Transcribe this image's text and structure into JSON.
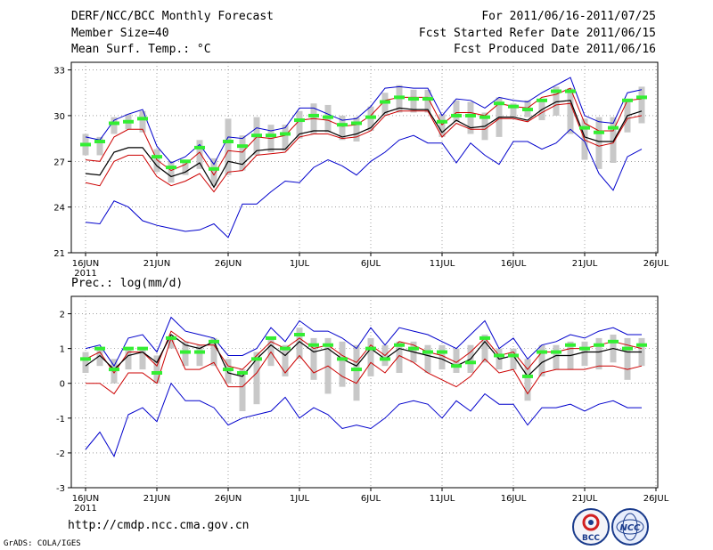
{
  "header": {
    "left1": "DERF/NCC/BCC Monthly Forecast",
    "left2": "Member Size=40",
    "left3": "Mean Surf. Temp.: °C",
    "right1": "For 2011/06/16-2011/07/25",
    "right2": "Fcst Started Refer Date 2011/06/15",
    "right3": "Fcst Produced Date 2011/06/16"
  },
  "footer": {
    "url": "http://cmdp.ncc.cma.gov.cn",
    "credit": "GrADS: COLA/IGES",
    "logo_left": "BCC",
    "logo_right": "NCC"
  },
  "colors": {
    "max_min": "#0000cc",
    "p10_p90": "#cc0000",
    "median": "#000000",
    "mean_marker": "#33ee33",
    "range_bar": "#c8c8c8",
    "grid": "#666666"
  },
  "chart_data": [
    {
      "type": "line",
      "title": "Mean Surf. Temp.: °C",
      "x": [
        "16JUN",
        "17JUN",
        "18JUN",
        "19JUN",
        "20JUN",
        "21JUN",
        "22JUN",
        "23JUN",
        "24JUN",
        "25JUN",
        "26JUN",
        "27JUN",
        "28JUN",
        "29JUN",
        "30JUN",
        "1JUL",
        "2JUL",
        "3JUL",
        "4JUL",
        "5JUL",
        "6JUL",
        "7JUL",
        "8JUL",
        "9JUL",
        "10JUL",
        "11JUL",
        "12JUL",
        "13JUL",
        "14JUL",
        "15JUL",
        "16JUL",
        "17JUL",
        "18JUL",
        "19JUL",
        "20JUL",
        "21JUL",
        "22JUL",
        "23JUL",
        "24JUL",
        "25JUL"
      ],
      "xtick_labels": [
        "16JUN",
        "21JUN",
        "26JUN",
        "1JUL",
        "6JUL",
        "11JUL",
        "16JUL",
        "21JUL",
        "26JUL"
      ],
      "xtick_year": "2011",
      "ylim": [
        21,
        33.5
      ],
      "yticks": [
        21,
        24,
        27,
        30,
        33
      ],
      "series": [
        {
          "name": "max",
          "values": [
            28.6,
            28.4,
            29.7,
            30.1,
            30.4,
            28.0,
            26.9,
            27.3,
            28.1,
            26.8,
            28.6,
            28.5,
            29.2,
            29.0,
            29.2,
            30.5,
            30.5,
            30.1,
            29.7,
            29.8,
            30.6,
            31.8,
            31.9,
            31.8,
            31.8,
            30.0,
            31.1,
            31.0,
            30.5,
            31.2,
            31.0,
            30.9,
            31.5,
            32.0,
            32.5,
            30.0,
            29.6,
            29.5,
            31.5,
            31.7
          ]
        },
        {
          "name": "p90",
          "values": [
            27.1,
            27.0,
            28.6,
            29.1,
            29.1,
            27.1,
            26.4,
            26.8,
            27.6,
            26.1,
            27.7,
            27.6,
            28.6,
            28.5,
            28.7,
            29.7,
            29.8,
            29.7,
            29.3,
            29.4,
            30.0,
            31.0,
            31.2,
            31.2,
            31.2,
            29.4,
            30.2,
            30.2,
            30.0,
            30.8,
            30.6,
            30.5,
            31.2,
            31.4,
            31.8,
            29.5,
            29.0,
            29.0,
            31.0,
            31.1
          ]
        },
        {
          "name": "median",
          "values": [
            26.2,
            26.1,
            27.6,
            27.9,
            27.9,
            26.7,
            26.0,
            26.3,
            26.9,
            25.3,
            27.0,
            26.8,
            27.7,
            27.8,
            27.8,
            28.8,
            29.0,
            29.0,
            28.6,
            28.8,
            29.2,
            30.2,
            30.5,
            30.4,
            30.4,
            28.9,
            29.7,
            29.2,
            29.3,
            29.9,
            29.9,
            29.7,
            30.4,
            30.9,
            31.0,
            28.6,
            28.3,
            28.3,
            30.0,
            30.3
          ]
        },
        {
          "name": "p10",
          "values": [
            25.6,
            25.4,
            27.0,
            27.4,
            27.4,
            26.0,
            25.4,
            25.7,
            26.2,
            25.0,
            26.3,
            26.4,
            27.4,
            27.5,
            27.6,
            28.6,
            28.8,
            28.8,
            28.5,
            28.6,
            29.0,
            30.0,
            30.3,
            30.3,
            30.3,
            28.6,
            29.5,
            29.1,
            29.1,
            29.8,
            29.8,
            29.6,
            30.2,
            30.7,
            30.8,
            28.4,
            28.0,
            28.2,
            29.8,
            30.0
          ]
        },
        {
          "name": "min",
          "values": [
            23.0,
            22.9,
            24.4,
            24.0,
            23.1,
            22.8,
            22.6,
            22.4,
            22.5,
            22.9,
            22.0,
            24.2,
            24.2,
            25.0,
            25.7,
            25.6,
            26.6,
            27.1,
            26.7,
            26.1,
            27.0,
            27.6,
            28.4,
            28.7,
            28.2,
            28.2,
            26.9,
            28.2,
            27.4,
            26.8,
            28.3,
            28.3,
            27.8,
            28.2,
            29.1,
            28.3,
            26.2,
            25.1,
            27.3,
            27.8
          ]
        },
        {
          "name": "mean",
          "values": [
            28.1,
            28.3,
            29.5,
            29.6,
            29.8,
            27.3,
            26.6,
            27.0,
            27.9,
            26.5,
            28.3,
            28.0,
            28.7,
            28.7,
            28.8,
            29.7,
            30.0,
            29.9,
            29.4,
            29.5,
            29.9,
            30.9,
            31.2,
            31.1,
            31.1,
            29.6,
            30.0,
            30.0,
            29.9,
            30.8,
            30.6,
            30.4,
            31.0,
            31.6,
            31.6,
            29.2,
            28.9,
            29.2,
            31.0,
            31.2
          ]
        },
        {
          "name": "box_low",
          "values": [
            27.4,
            27.4,
            28.8,
            29.1,
            28.9,
            26.3,
            25.6,
            26.1,
            26.5,
            25.4,
            26.1,
            26.4,
            27.4,
            27.6,
            27.7,
            28.5,
            28.8,
            28.9,
            28.4,
            28.3,
            29.0,
            30.0,
            30.2,
            30.2,
            30.2,
            28.6,
            29.6,
            28.8,
            28.4,
            28.6,
            29.9,
            29.9,
            29.7,
            30.0,
            28.8,
            27.1,
            26.5,
            26.9,
            28.9,
            29.5
          ]
        },
        {
          "name": "box_high",
          "values": [
            28.8,
            28.6,
            29.9,
            30.1,
            30.3,
            27.8,
            27.0,
            27.1,
            28.4,
            27.2,
            29.8,
            28.7,
            29.9,
            29.4,
            29.4,
            30.3,
            30.8,
            30.7,
            30.0,
            29.9,
            30.6,
            31.5,
            32.0,
            31.7,
            31.7,
            30.1,
            31.0,
            30.9,
            30.2,
            31.2,
            30.8,
            31.0,
            31.0,
            31.9,
            31.8,
            29.8,
            29.9,
            29.9,
            31.0,
            31.9
          ]
        }
      ]
    },
    {
      "type": "line",
      "title": "Prec.: log(mm/d)",
      "x": [
        "16JUN",
        "17JUN",
        "18JUN",
        "19JUN",
        "20JUN",
        "21JUN",
        "22JUN",
        "23JUN",
        "24JUN",
        "25JUN",
        "26JUN",
        "27JUN",
        "28JUN",
        "29JUN",
        "30JUN",
        "1JUL",
        "2JUL",
        "3JUL",
        "4JUL",
        "5JUL",
        "6JUL",
        "7JUL",
        "8JUL",
        "9JUL",
        "10JUL",
        "11JUL",
        "12JUL",
        "13JUL",
        "14JUL",
        "15JUL",
        "16JUL",
        "17JUL",
        "18JUL",
        "19JUL",
        "20JUL",
        "21JUL",
        "22JUL",
        "23JUL",
        "24JUL",
        "25JUL"
      ],
      "xtick_labels": [
        "16JUN",
        "21JUN",
        "26JUN",
        "1JUL",
        "6JUL",
        "11JUL",
        "16JUL",
        "21JUL",
        "26JUL"
      ],
      "xtick_year": "2011",
      "ylim": [
        -3,
        2.5
      ],
      "yticks": [
        -3,
        -2,
        -1,
        0,
        1,
        2
      ],
      "series": [
        {
          "name": "max",
          "values": [
            1.0,
            1.1,
            0.5,
            1.3,
            1.4,
            0.9,
            1.9,
            1.5,
            1.4,
            1.3,
            0.8,
            0.8,
            1.0,
            1.6,
            1.2,
            1.8,
            1.5,
            1.5,
            1.3,
            1.0,
            1.6,
            1.1,
            1.6,
            1.5,
            1.4,
            1.2,
            1.0,
            1.4,
            1.8,
            1.0,
            1.3,
            0.7,
            1.1,
            1.2,
            1.4,
            1.3,
            1.5,
            1.6,
            1.4,
            1.4
          ]
        },
        {
          "name": "p90",
          "values": [
            0.7,
            0.9,
            0.3,
            0.9,
            0.9,
            0.5,
            1.5,
            1.2,
            1.1,
            1.1,
            0.5,
            0.4,
            0.8,
            1.2,
            1.0,
            1.3,
            1.0,
            1.1,
            0.8,
            0.6,
            1.1,
            0.8,
            1.2,
            1.1,
            0.9,
            0.8,
            0.6,
            0.9,
            1.3,
            0.8,
            0.9,
            0.4,
            0.9,
            0.9,
            1.0,
            1.0,
            1.1,
            1.2,
            1.1,
            1.0
          ]
        },
        {
          "name": "median",
          "values": [
            0.5,
            0.8,
            0.4,
            0.8,
            0.9,
            0.6,
            1.4,
            1.1,
            1.0,
            1.2,
            0.3,
            0.2,
            0.7,
            1.1,
            0.8,
            1.2,
            0.9,
            1.0,
            0.7,
            0.5,
            1.0,
            0.7,
            1.0,
            0.9,
            0.8,
            0.7,
            0.5,
            0.7,
            1.2,
            0.7,
            0.8,
            0.2,
            0.6,
            0.8,
            0.8,
            0.9,
            0.9,
            1.0,
            0.9,
            0.9
          ]
        },
        {
          "name": "p10",
          "values": [
            0.0,
            0.0,
            -0.3,
            0.3,
            0.3,
            0.0,
            1.3,
            0.4,
            0.4,
            0.6,
            -0.1,
            -0.1,
            0.3,
            0.9,
            0.3,
            0.8,
            0.3,
            0.5,
            0.2,
            0.0,
            0.6,
            0.3,
            0.8,
            0.6,
            0.3,
            0.1,
            -0.1,
            0.2,
            0.7,
            0.3,
            0.4,
            -0.3,
            0.3,
            0.4,
            0.4,
            0.4,
            0.5,
            0.5,
            0.4,
            0.5
          ]
        },
        {
          "name": "min",
          "values": [
            -1.9,
            -1.4,
            -2.1,
            -0.9,
            -0.7,
            -1.1,
            0.0,
            -0.5,
            -0.5,
            -0.7,
            -1.2,
            -1.0,
            -0.9,
            -0.8,
            -0.4,
            -1.0,
            -0.7,
            -0.9,
            -1.3,
            -1.2,
            -1.3,
            -1.0,
            -0.6,
            -0.5,
            -0.6,
            -1.0,
            -0.5,
            -0.8,
            -0.3,
            -0.6,
            -0.6,
            -1.2,
            -0.7,
            -0.7,
            -0.6,
            -0.8,
            -0.6,
            -0.5,
            -0.7,
            -0.7
          ]
        },
        {
          "name": "mean",
          "values": [
            0.7,
            1.0,
            0.4,
            1.0,
            1.0,
            0.3,
            1.3,
            0.9,
            0.9,
            1.2,
            0.4,
            0.3,
            0.7,
            1.3,
            1.0,
            1.4,
            1.1,
            1.1,
            0.7,
            0.4,
            1.0,
            0.7,
            1.1,
            1.0,
            0.9,
            0.9,
            0.5,
            0.6,
            1.3,
            0.8,
            0.8,
            0.2,
            0.9,
            0.9,
            1.1,
            1.0,
            1.1,
            1.2,
            1.0,
            1.1
          ]
        },
        {
          "name": "box_low",
          "values": [
            0.3,
            0.5,
            0.0,
            0.4,
            0.4,
            0.0,
            1.0,
            0.5,
            0.5,
            0.5,
            0.0,
            -0.8,
            -0.6,
            0.5,
            0.2,
            0.7,
            0.1,
            -0.3,
            -0.1,
            -0.5,
            0.2,
            0.5,
            0.3,
            0.6,
            0.3,
            0.4,
            0.3,
            0.3,
            0.6,
            0.4,
            0.4,
            -0.5,
            0.2,
            0.4,
            0.4,
            0.5,
            0.4,
            0.6,
            0.1,
            0.5
          ]
        },
        {
          "name": "box_high",
          "values": [
            0.9,
            1.0,
            0.7,
            1.0,
            1.0,
            0.8,
            1.3,
            1.2,
            1.1,
            1.3,
            0.7,
            0.4,
            0.9,
            1.3,
            1.1,
            1.6,
            1.3,
            1.3,
            1.2,
            1.1,
            1.3,
            1.1,
            1.2,
            1.2,
            1.1,
            1.1,
            1.0,
            1.1,
            1.4,
            1.0,
            1.0,
            0.7,
            1.1,
            1.1,
            1.2,
            1.2,
            1.3,
            1.4,
            1.3,
            1.3
          ]
        }
      ]
    }
  ]
}
